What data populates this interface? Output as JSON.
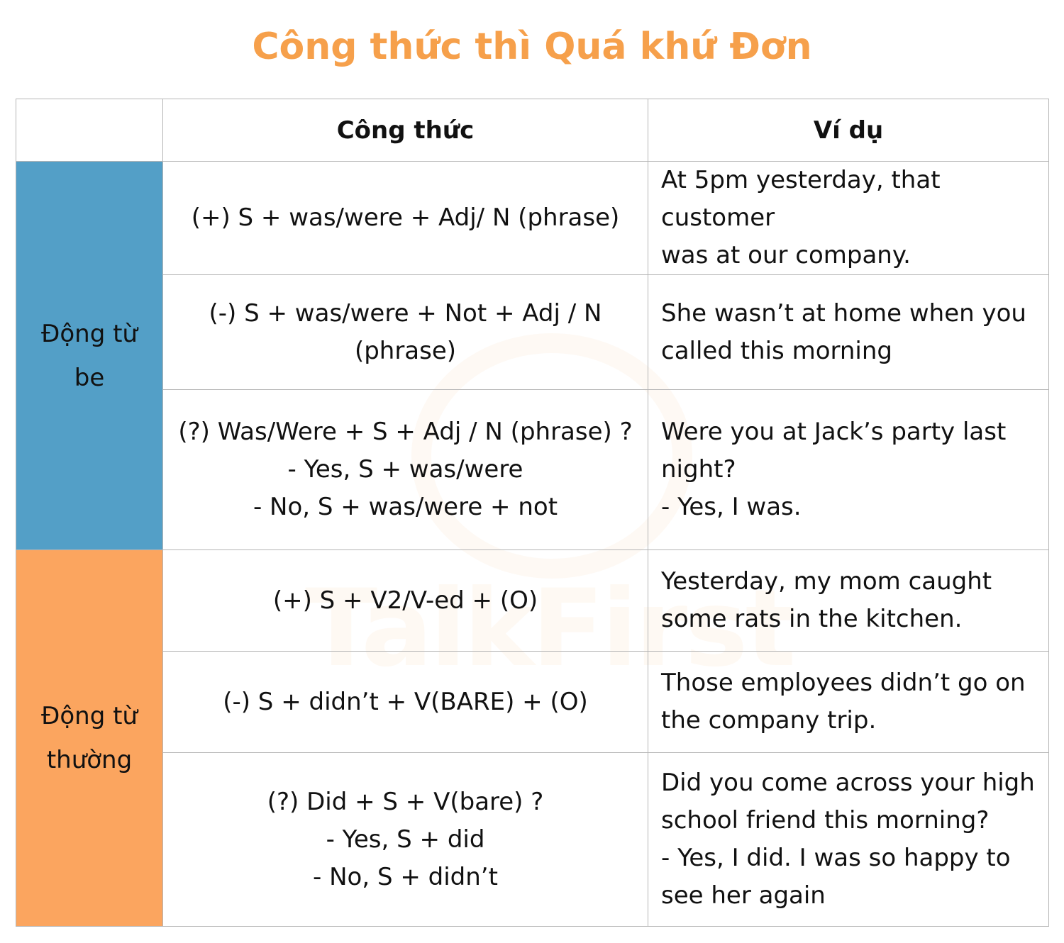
{
  "title": "Công thức thì Quá khứ Đơn",
  "watermark": "TalkFirst",
  "colors": {
    "title": "#f6a04b",
    "be_category": "#539fc7",
    "regular_category": "#fba55f"
  },
  "headers": {
    "formula": "Công thức",
    "example": "Ví dụ"
  },
  "groups": [
    {
      "label_lines": [
        "Động từ",
        "be"
      ],
      "rows": [
        {
          "formula": [
            "(+) S + was/were + Adj/ N (phrase)"
          ],
          "example": [
            "At 5pm yesterday, that customer",
            "was at our company."
          ]
        },
        {
          "formula": [
            "(-) S + was/were + Not + Adj / N (phrase)"
          ],
          "example": [
            "She wasn’t at home when you",
            "called this morning"
          ]
        },
        {
          "formula": [
            "(?) Was/Were + S + Adj / N (phrase) ?",
            "- Yes, S + was/were",
            "- No, S + was/were + not"
          ],
          "example": [
            "Were you at Jack’s party last",
            "night?",
            "- Yes, I was."
          ]
        }
      ]
    },
    {
      "label_lines": [
        "Động từ",
        "thường"
      ],
      "rows": [
        {
          "formula": [
            "(+) S + V2/V-ed + (O)"
          ],
          "example": [
            "Yesterday, my mom caught",
            "some rats in the kitchen."
          ]
        },
        {
          "formula": [
            "(-) S + didn’t + V(BARE) + (O)"
          ],
          "example": [
            "Those employees didn’t go on",
            "the company trip."
          ]
        },
        {
          "formula": [
            "(?) Did + S + V(bare) ?",
            "- Yes, S + did",
            "- No, S + didn’t"
          ],
          "example": [
            "Did you come across your high",
            "school friend this morning?",
            "- Yes, I did. I was so happy to",
            "see her again"
          ]
        }
      ]
    }
  ]
}
